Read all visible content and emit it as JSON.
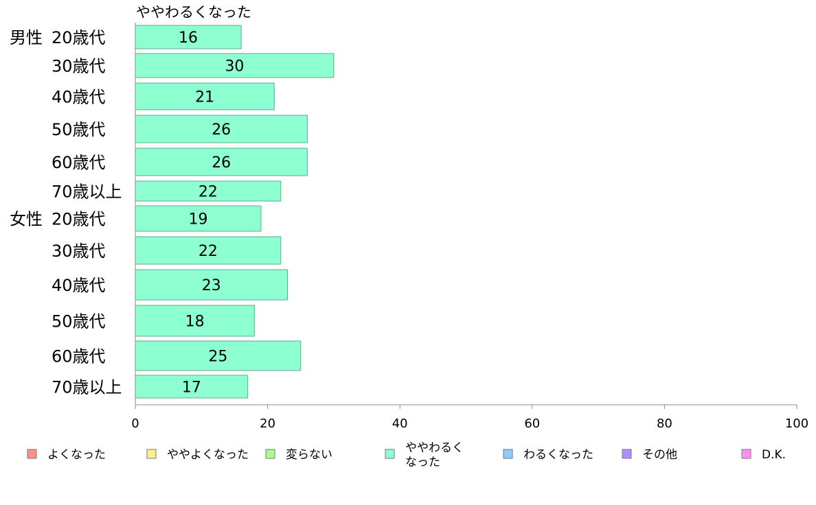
{
  "chart_data": {
    "type": "bar",
    "orientation": "horizontal",
    "title": "ややわるくなった",
    "groups": [
      {
        "label": "男性",
        "categories": [
          "20歳代",
          "30歳代",
          "40歳代",
          "50歳代",
          "60歳代",
          "70歳以上"
        ]
      },
      {
        "label": "女性",
        "categories": [
          "20歳代",
          "30歳代",
          "40歳代",
          "50歳代",
          "60歳代",
          "70歳以上"
        ]
      }
    ],
    "series": [
      {
        "name": "ややわるくなった",
        "color": "#8effd0",
        "values": [
          16,
          30,
          21,
          26,
          26,
          22,
          19,
          22,
          23,
          18,
          25,
          17
        ]
      }
    ],
    "xlim": [
      0,
      100
    ],
    "xticks": [
      0,
      20,
      40,
      60,
      80,
      100
    ],
    "grid": false,
    "legend": {
      "placement": "bottom",
      "items": [
        {
          "label": "よくなった",
          "color": "#ff8e8e"
        },
        {
          "label": "ややよくなった",
          "color": "#ffee8e"
        },
        {
          "label": "変らない",
          "color": "#a9ff8e"
        },
        {
          "label": "ややわるく\nなった",
          "color": "#8effd0"
        },
        {
          "label": "わるくなった",
          "color": "#8ecbff"
        },
        {
          "label": "その他",
          "color": "#b08eff"
        },
        {
          "label": "D.K.",
          "color": "#ff8ef0"
        }
      ]
    }
  }
}
